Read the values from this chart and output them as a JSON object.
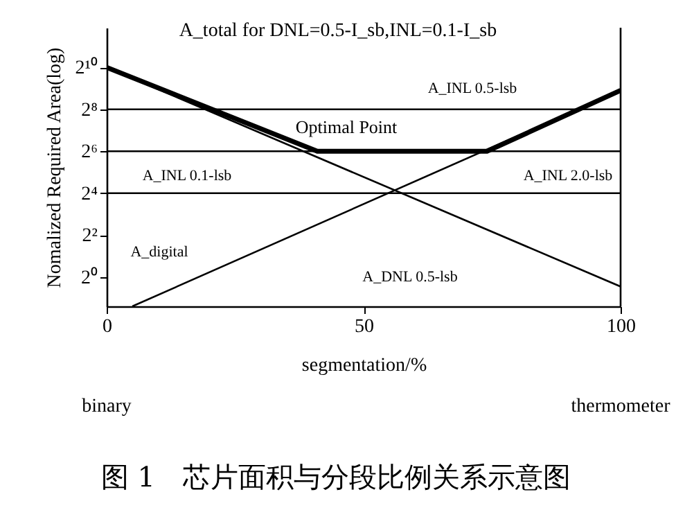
{
  "chart_data": {
    "type": "line",
    "title": "A_total for DNL=0.5-I_sb,INL=0.1-I_sb",
    "xlabel": "segmentation/%",
    "ylabel": "Nomalized Required Area(log)",
    "xlim": [
      0,
      100
    ],
    "xticks": [
      0,
      50,
      100
    ],
    "ylim": [
      0.38,
      3800
    ],
    "log": true,
    "yticks": [
      {
        "value": 1,
        "label": "2⁰"
      },
      {
        "value": 4,
        "label": "2²"
      },
      {
        "value": 16,
        "label": "2⁴"
      },
      {
        "value": 64,
        "label": "2⁶"
      },
      {
        "value": 256,
        "label": "2⁸"
      },
      {
        "value": 1024,
        "label": "2¹⁰"
      }
    ],
    "grid": false,
    "marker": "none",
    "line_style": "solid",
    "series": [
      {
        "color": "#000000",
        "x": [
          0,
          41,
          74,
          100
        ],
        "values": [
          1024,
          64,
          64,
          478
        ]
      },
      {
        "color": "#000000",
        "x": [
          0,
          100
        ],
        "values": [
          1024,
          0.73
        ]
      },
      {
        "color": "#000000",
        "x": [
          5,
          100
        ],
        "values": [
          0.38,
          478
        ]
      }
    ],
    "ref_lines": [
      {
        "axis": "y",
        "value": 256,
        "color": "#000000"
      },
      {
        "axis": "y",
        "value": 64,
        "color": "#000000"
      },
      {
        "axis": "y",
        "value": 16,
        "color": "#000000"
      }
    ],
    "annotations": [
      "A_INL 0.5-lsb",
      "A_INL 0.1-lsb",
      "A_INL 2.0-lsb",
      "A_DNL 0.5-lsb",
      "A_digital",
      "Optimal Point",
      "binary",
      "thermometer",
      "图 1　芯片面积与分段比例关系示意图"
    ]
  }
}
